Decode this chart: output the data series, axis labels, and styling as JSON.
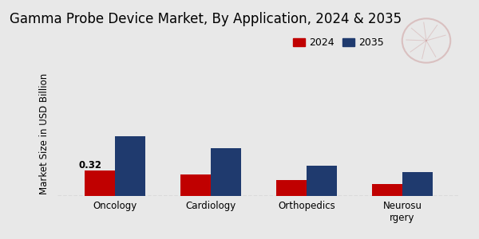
{
  "title": "Gamma Probe Device Market, By Application, 2024 & 2035",
  "ylabel": "Market Size in USD Billion",
  "categories": [
    "Oncology",
    "Cardiology",
    "Orthopedics",
    "Neurosu\nrgery"
  ],
  "values_2024": [
    0.32,
    0.27,
    0.2,
    0.15
  ],
  "values_2035": [
    0.75,
    0.6,
    0.38,
    0.3
  ],
  "color_2024": "#c00000",
  "color_2035": "#1f3a6e",
  "label_2024": "2024",
  "label_2035": "2035",
  "annotation_value": "0.32",
  "background_color": "#e8e8e8",
  "bar_width": 0.32,
  "title_fontsize": 12,
  "axis_label_fontsize": 8.5,
  "tick_fontsize": 8.5,
  "legend_fontsize": 9,
  "bottom_strip_color": "#cc0000",
  "ylim": [
    0,
    1.55
  ]
}
